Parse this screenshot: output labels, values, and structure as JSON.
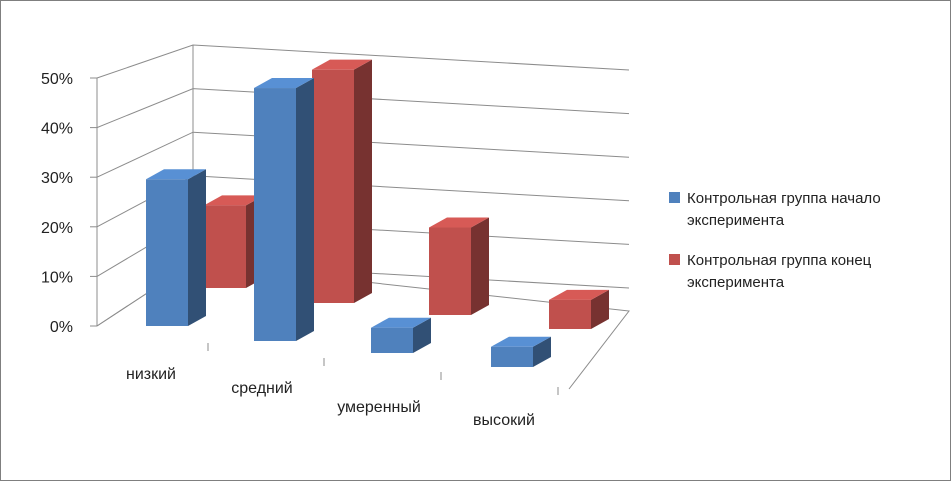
{
  "chart_data": {
    "type": "bar",
    "categories": [
      "низкий",
      "средний",
      "умеренный",
      "высокий"
    ],
    "series": [
      {
        "name": "Контрольная группа начало эксперимента",
        "values": [
          29,
          50,
          5,
          4
        ],
        "color": "#4f81bd"
      },
      {
        "name": "Контрольная группа конец эксперимента",
        "values": [
          17,
          48,
          18,
          6
        ],
        "color": "#c0504d"
      }
    ],
    "yticks": [
      "0%",
      "10%",
      "20%",
      "30%",
      "40%",
      "50%"
    ],
    "ylim": [
      0,
      50
    ],
    "grid": true,
    "legend": "right",
    "three_d": true
  }
}
